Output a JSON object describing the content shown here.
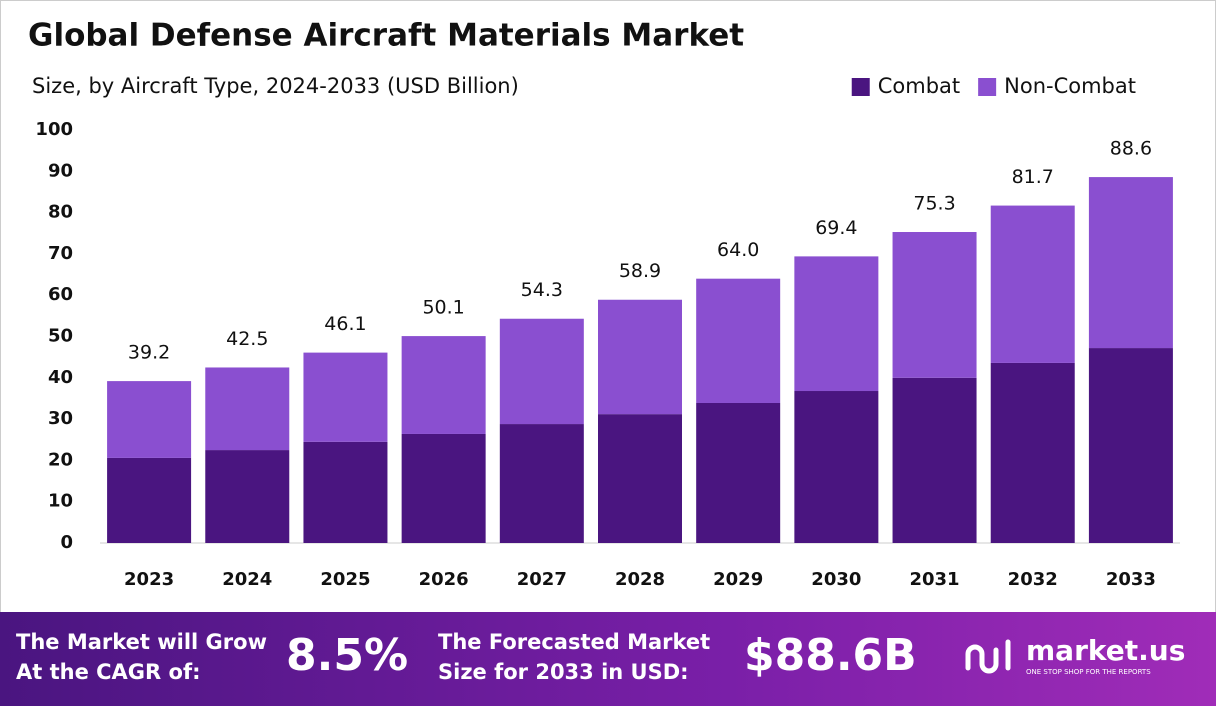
{
  "chart_data": {
    "type": "stacked_bar",
    "title": "Global Defense Aircraft Materials Market",
    "subtitle": "Size, by Aircraft Type, 2024-2033 (USD Billion)",
    "categories": [
      "2023",
      "2024",
      "2025",
      "2026",
      "2027",
      "2028",
      "2029",
      "2030",
      "2031",
      "2032",
      "2033"
    ],
    "series": [
      {
        "name": "Combat",
        "color": "#4a1580",
        "values": [
          20.6,
          22.5,
          24.5,
          26.4,
          28.8,
          31.2,
          33.9,
          36.8,
          40.0,
          43.6,
          47.2
        ]
      },
      {
        "name": "Non-Combat",
        "color": "#8a4fd0",
        "values": [
          18.6,
          20.0,
          21.6,
          23.7,
          25.5,
          27.7,
          30.1,
          32.6,
          35.3,
          38.1,
          41.4
        ]
      }
    ],
    "totals": [
      39.2,
      42.5,
      46.1,
      50.1,
      54.3,
      58.9,
      {
        "value": 64.0,
        "label": "64.0"
      },
      69.4,
      75.3,
      81.7,
      88.6
    ],
    "ylim": [
      0,
      100
    ],
    "yticks": [
      0,
      10,
      20,
      30,
      40,
      50,
      60,
      70,
      80,
      90,
      100
    ],
    "grid": false,
    "legend": "top-right"
  },
  "footer": {
    "cagr_text": [
      "The Market will Grow",
      "At the CAGR of:"
    ],
    "cagr": "8.5%",
    "forecast_text": [
      "The Forecasted Market",
      "Size for 2033 in USD:"
    ],
    "forecast": "$88.6B",
    "brand": "market.us",
    "tagline": "ONE STOP SHOP FOR THE REPORTS"
  }
}
